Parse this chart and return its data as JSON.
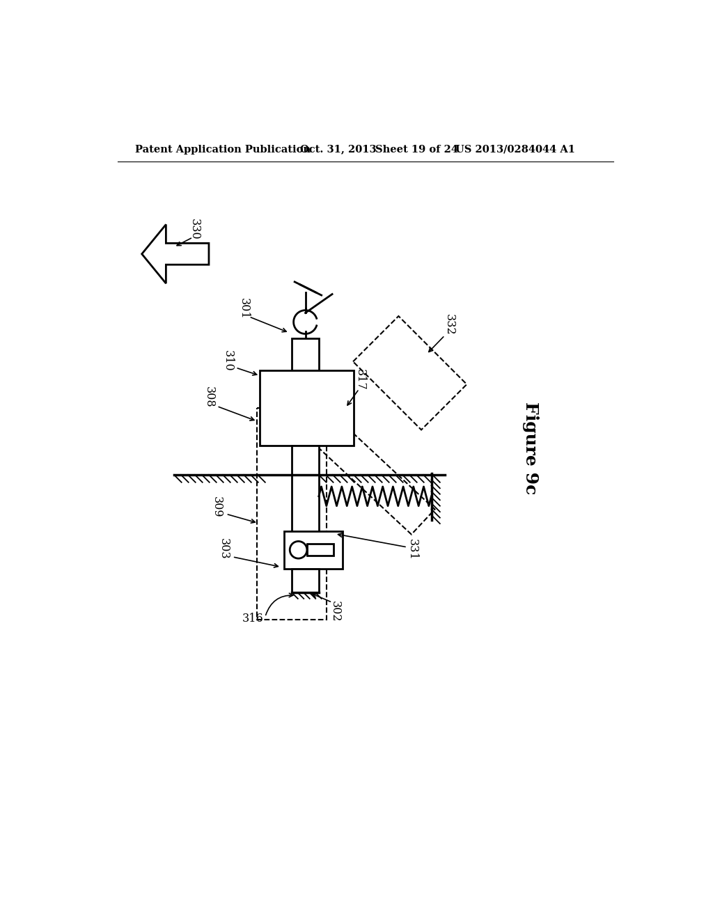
{
  "bg_color": "#ffffff",
  "header_text": "Patent Application Publication",
  "header_date": "Oct. 31, 2013",
  "header_sheet": "Sheet 19 of 24",
  "header_patent": "US 2013/0284044 A1",
  "figure_label": "Figure 9c"
}
